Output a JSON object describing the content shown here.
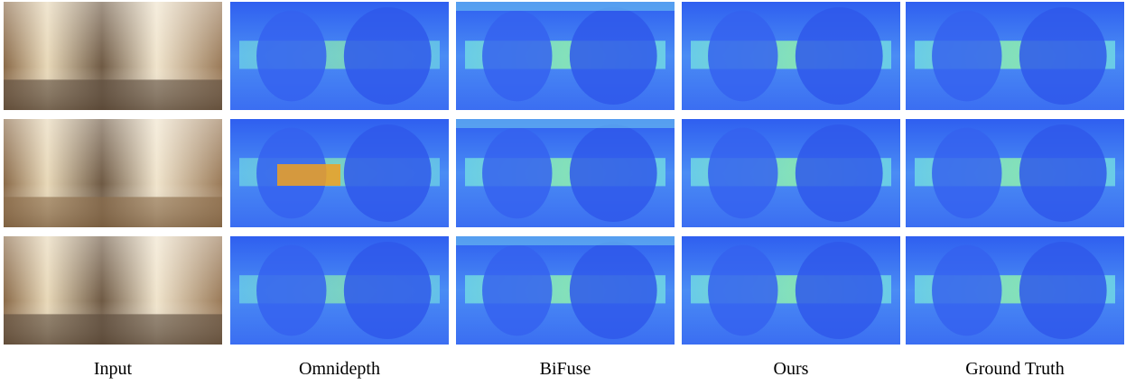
{
  "figure": {
    "columns": [
      "Input",
      "Omnidepth",
      "BiFuse",
      "Ours",
      "Ground Truth"
    ]
  }
}
